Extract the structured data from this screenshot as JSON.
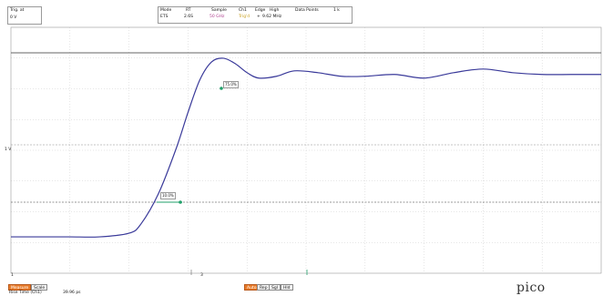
{
  "trigger_panel": {
    "label1": "Trig. at",
    "value1": "0 V"
  },
  "settings": {
    "col1_hdr": "Mode",
    "col1_val": "ETS",
    "col2_hdr": "RT",
    "col2_val": "2.6S",
    "col3_hdr": "Sample",
    "col3_val": "50 GHz",
    "col4_hdr": "Ch1",
    "col4_val": "Trig'd",
    "col5_hdr": "Edge",
    "col5_val": "+",
    "col6_hdr": "High",
    "col6_val": "9.62 MHz",
    "col7_hdr": "Data Points",
    "col7_val": "1 k"
  },
  "markers": {
    "upper": "75.0%",
    "lower": "10.0%",
    "y_axis_tick": "1 V"
  },
  "x_axis": {
    "left": "1",
    "mid": "3"
  },
  "bottom": {
    "tab1": "Measure",
    "tab2": "Scale",
    "info_label": "Rise Time (Ch1)",
    "info_value": "39.96 ps",
    "btn_auto": "Auto",
    "btn_repeat": "Rep",
    "btn_single": "Sgl",
    "btn_hold": "Hld"
  },
  "logo_text": "pico",
  "colors": {
    "trace": "#3a3a9a",
    "marker_green": "#22a06b",
    "grid": "#bfbfbf",
    "highlight": "#e87c2b"
  },
  "chart_data": {
    "type": "line",
    "description": "step response with overshoot and ringing",
    "x": [
      0,
      5,
      10,
      15,
      20,
      22,
      25,
      28,
      30,
      32,
      34,
      36,
      38,
      40,
      42,
      45,
      48,
      52,
      56,
      60,
      65,
      70,
      75,
      80,
      85,
      90,
      95,
      100
    ],
    "values": [
      0.03,
      0.03,
      0.03,
      0.03,
      0.05,
      0.1,
      0.27,
      0.52,
      0.72,
      0.9,
      1.0,
      1.02,
      0.99,
      0.94,
      0.91,
      0.92,
      0.95,
      0.94,
      0.92,
      0.92,
      0.93,
      0.91,
      0.94,
      0.96,
      0.94,
      0.93,
      0.93,
      0.93
    ],
    "ylim": [
      0,
      1.05
    ],
    "xlim": [
      0,
      100
    ]
  }
}
